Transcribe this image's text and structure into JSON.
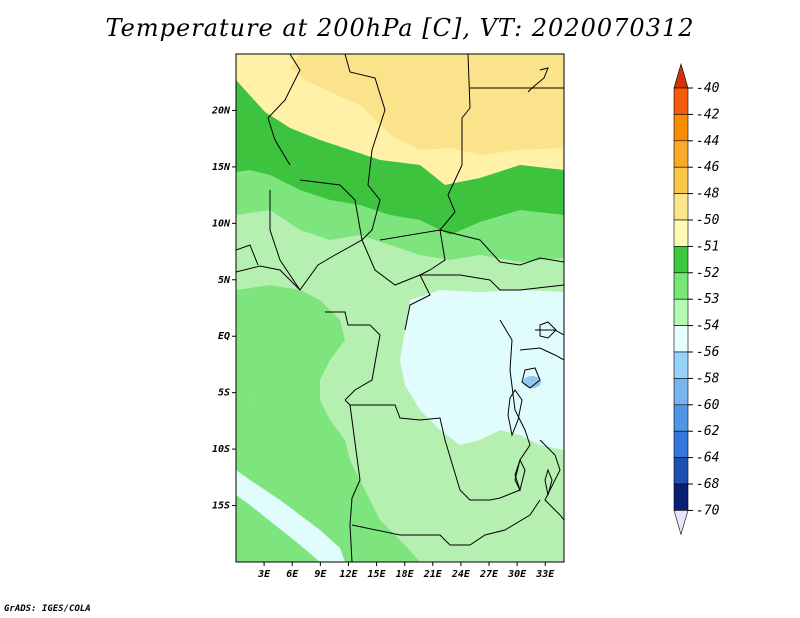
{
  "title": "Temperature at 200hPa [C], VT: 2020070312",
  "credit": "GrADS: IGES/COLA",
  "map": {
    "lon_range": [
      0,
      35
    ],
    "lat_range": [
      -20,
      25
    ],
    "lon_ticks": [
      "3E",
      "6E",
      "9E",
      "12E",
      "15E",
      "18E",
      "21E",
      "24E",
      "27E",
      "30E",
      "33E"
    ],
    "lat_ticks": [
      "20N",
      "15N",
      "10N",
      "5N",
      "EQ",
      "5S",
      "10S",
      "15S"
    ],
    "shading": {
      "warm_north": "#fbe38c",
      "warm_band": "#fff2a8",
      "green_dark": "#3ec33e",
      "green_mid": "#7ee47e",
      "green_light": "#b6f0b0",
      "cold_center": "#e0fcfc",
      "cold_spot": "#8fc8ee",
      "warm_patch": "#fff0a0"
    }
  },
  "colorbar": {
    "levels": [
      "-40",
      "-42",
      "-44",
      "-46",
      "-48",
      "-50",
      "-51",
      "-52",
      "-53",
      "-54",
      "-56",
      "-58",
      "-60",
      "-62",
      "-64",
      "-68",
      "-70"
    ],
    "colors": [
      "#e8321e",
      "#f55a0a",
      "#fa8c00",
      "#faaa28",
      "#fac846",
      "#fae68c",
      "#fffab4",
      "#3cc83c",
      "#78e678",
      "#b4fab4",
      "#e6ffff",
      "#96d2fa",
      "#78b4f0",
      "#5096e6",
      "#3278dc",
      "#1e50b4",
      "#0a1e78"
    ],
    "top_arrow_color": "#d2320a",
    "bottom_arrow_color": "#e6e6fa"
  }
}
